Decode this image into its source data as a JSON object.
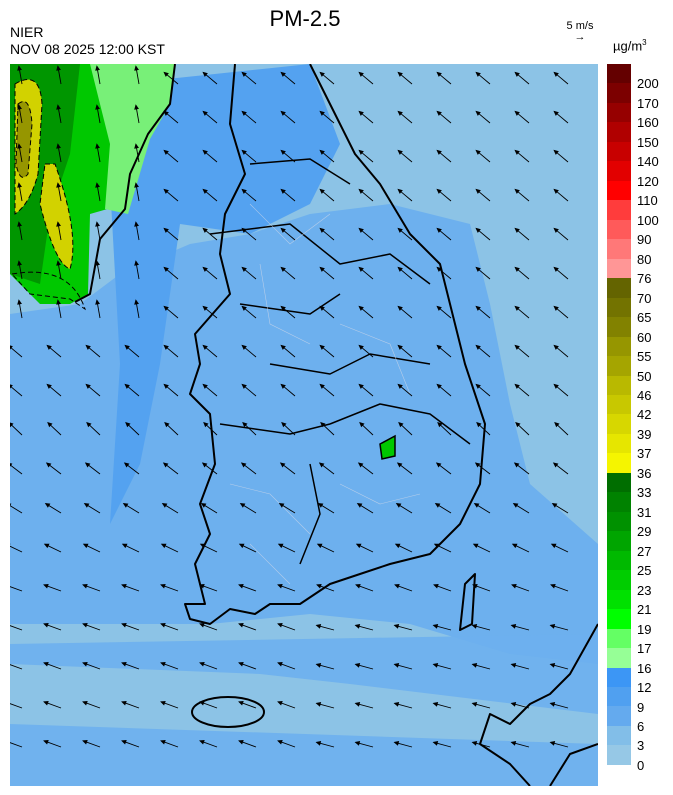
{
  "header": {
    "title": "PM-2.5",
    "organization": "NIER",
    "datetime": "NOV 08 2025 12:00 KST",
    "wind_scale_label": "5 m/s",
    "wind_scale_icon": "arrow-right-icon",
    "unit": "µg/m",
    "unit_exponent": "3"
  },
  "legend": {
    "labels": [
      "200",
      "170",
      "160",
      "150",
      "140",
      "120",
      "110",
      "100",
      "90",
      "80",
      "76",
      "70",
      "65",
      "60",
      "55",
      "50",
      "46",
      "42",
      "39",
      "37",
      "36",
      "33",
      "31",
      "29",
      "27",
      "25",
      "23",
      "21",
      "19",
      "17",
      "16",
      "12",
      "9",
      "6",
      "3",
      "0"
    ],
    "colors": [
      "#640000",
      "#7c0000",
      "#960000",
      "#b00000",
      "#c80000",
      "#e20000",
      "#ff0000",
      "#ff3c3c",
      "#ff5a5a",
      "#ff7878",
      "#ff9696",
      "#646400",
      "#737300",
      "#828200",
      "#969600",
      "#a5a500",
      "#b9b900",
      "#c8c800",
      "#d7d700",
      "#e6e600",
      "#f5f500",
      "#006e00",
      "#008200",
      "#009100",
      "#00a500",
      "#00b900",
      "#00cd00",
      "#00e100",
      "#00ff00",
      "#64ff64",
      "#96ff96",
      "#3c96f5",
      "#50a0f0",
      "#64aaee",
      "#82bee8",
      "#96c8e6"
    ]
  },
  "map": {
    "colors": {
      "sea_low": "#8cc3e6",
      "mid": "#6db0ee",
      "high": "#54a2f0",
      "green": "#00c800",
      "green_dark": "#009600",
      "light_green": "#78f078",
      "yellow": "#d2d200",
      "olive": "#969600",
      "border": "#000000"
    }
  }
}
